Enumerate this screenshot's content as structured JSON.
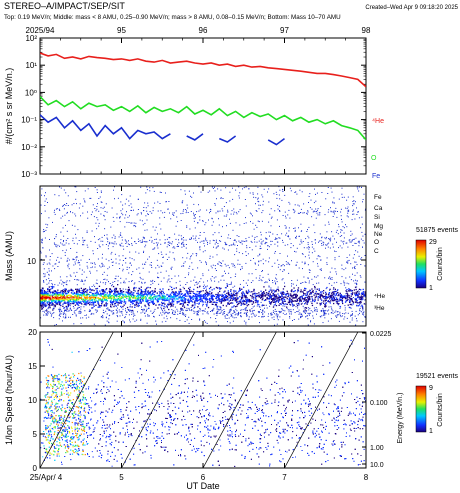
{
  "header": {
    "title": "STEREO–A/IMPACT/SEP/SIT",
    "created": "Created–Wed Apr  9 09:18:20 2025",
    "subtitle": "Top: 0.19 MeV/n; Middle: mass < 8 AMU, 0.25–0.90 MeV/n; mass > 8 AMU, 0.08–0.15 MeV/n; Bottom: Mass 10–70 AMU"
  },
  "colors": {
    "he4": "#e8201c",
    "o": "#22dd22",
    "fe": "#1a2fcf",
    "axis": "#000000"
  },
  "chart_data": [
    {
      "type": "line",
      "panel": "top",
      "top_axis_label": "2025/94",
      "top_ticks": [
        "2025/94",
        "95",
        "96",
        "97",
        "98"
      ],
      "ylabel": "#/(cm² s sr MeV/n.)",
      "yscale": "log",
      "ylim": [
        0.001,
        100
      ],
      "yticks": [
        "10⁻³",
        "10⁻²",
        "10⁻¹",
        "10⁰",
        "10¹",
        "10²"
      ],
      "x": [
        0,
        0.1,
        0.2,
        0.3,
        0.4,
        0.5,
        0.6,
        0.7,
        0.8,
        0.9,
        1.0,
        1.1,
        1.2,
        1.3,
        1.4,
        1.5,
        1.6,
        1.7,
        1.8,
        1.9,
        2.0,
        2.1,
        2.2,
        2.3,
        2.4,
        2.5,
        2.6,
        2.7,
        2.8,
        2.9,
        3.0,
        3.1,
        3.2,
        3.3,
        3.4,
        3.5,
        3.6,
        3.7,
        3.8,
        3.9,
        4.0
      ],
      "series": [
        {
          "name": "⁴He",
          "color": "#e8201c",
          "values": [
            28,
            22,
            25,
            18,
            20,
            17,
            21,
            19,
            18,
            16,
            17,
            15,
            17,
            14,
            13,
            15,
            12,
            13,
            14,
            12,
            11,
            12,
            10,
            11,
            9,
            10,
            8.5,
            9,
            8,
            7.5,
            7,
            6.5,
            6,
            5.5,
            5,
            5,
            4.5,
            4,
            3.5,
            3,
            1.6
          ]
        },
        {
          "name": "O",
          "color": "#22dd22",
          "values": [
            0.7,
            0.35,
            0.5,
            0.3,
            0.45,
            0.25,
            0.4,
            0.3,
            0.35,
            0.22,
            0.3,
            0.2,
            0.32,
            0.18,
            0.28,
            0.2,
            0.25,
            0.18,
            0.3,
            0.16,
            0.22,
            0.15,
            0.25,
            0.14,
            0.2,
            0.12,
            0.18,
            0.13,
            0.16,
            0.1,
            0.14,
            0.09,
            0.12,
            0.08,
            0.1,
            0.07,
            0.09,
            0.06,
            0.05,
            0.04,
            0.018
          ]
        },
        {
          "name": "Fe",
          "color": "#1a2fcf",
          "values": [
            0.15,
            0.08,
            0.12,
            0.05,
            0.09,
            0.04,
            0.07,
            0.025,
            0.06,
            0.03,
            0.05,
            0.02,
            0.04,
            0.03,
            0.035,
            0.02,
            0.03,
            null,
            0.025,
            0.018,
            0.03,
            null,
            0.02,
            0.015,
            0.025,
            null,
            0.02,
            null,
            0.018,
            0.012,
            0.02,
            null,
            0.015,
            null,
            0.012,
            null,
            0.01,
            null,
            null,
            0.01,
            null
          ]
        }
      ]
    },
    {
      "type": "heatmap",
      "panel": "middle",
      "ylabel": "Mass (AMU)",
      "yscale": "log",
      "ytick_labels": [
        "10"
      ],
      "species_labels": [
        "Fe",
        "Ca",
        "Si",
        "Mg",
        "Ne",
        "O",
        "C",
        "⁴He",
        "³He"
      ],
      "events_label": "51875 events",
      "colorbar_title": "Counts/bin",
      "colorbar_range": [
        1,
        29
      ]
    },
    {
      "type": "heatmap",
      "panel": "bottom",
      "xlabel": "UT Date",
      "ylabel": "1/Ion Speed (hour/AU)",
      "ylim": [
        0,
        20
      ],
      "yticks": [
        "0",
        "5",
        "10",
        "15",
        "20"
      ],
      "xtick_labels": [
        "25/Apr/ 4",
        "5",
        "6",
        "7",
        "8"
      ],
      "right_ticks": [
        "0.0225",
        "0.100",
        "1.00",
        "10.0"
      ],
      "right_label": "Energy (MeV/n.)",
      "events_label": "19521 events",
      "colorbar_title": "Counts/bin",
      "colorbar_range": [
        1,
        9
      ]
    }
  ],
  "legend": {
    "he4": "⁴He",
    "o": "O",
    "fe": "Fe"
  },
  "colorbar1": {
    "max": "29",
    "min": "1",
    "title": "Counts/bin",
    "events": "51875 events"
  },
  "colorbar2": {
    "max": "9",
    "min": "1",
    "title": "Counts/bin",
    "events": "19521 events"
  }
}
